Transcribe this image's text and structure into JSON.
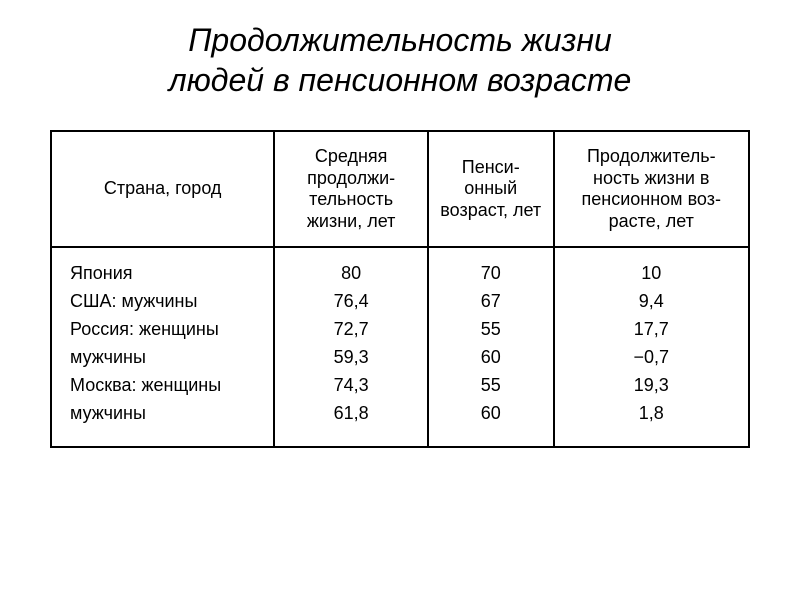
{
  "title_line1": "Продолжительность жизни",
  "title_line2": "людей в пенсионном возрасте",
  "table": {
    "type": "table",
    "columns": [
      {
        "label": "Страна, город",
        "width_pct": 32,
        "align": "left"
      },
      {
        "label": "Средняя продолжи-\nтельность жизни, лет",
        "width_pct": 22,
        "align": "center"
      },
      {
        "label": "Пенси-\nонный возраст, лет",
        "width_pct": 18,
        "align": "center"
      },
      {
        "label": "Продолжитель-\nность жизни в пенсионном воз-\nрасте, лет",
        "width_pct": 28,
        "align": "center"
      }
    ],
    "rows": [
      {
        "label": "Япония",
        "life": "80",
        "pension_age": "70",
        "years_in_pension": "10"
      },
      {
        "label": "США: мужчины",
        "life": "76,4",
        "pension_age": "67",
        "years_in_pension": "9,4"
      },
      {
        "label": "Россия: женщины",
        "life": "72,7",
        "pension_age": "55",
        "years_in_pension": "17,7"
      },
      {
        "label": "мужчины",
        "life": "59,3",
        "pension_age": "60",
        "years_in_pension": "−0,7"
      },
      {
        "label": "Москва: женщины",
        "life": "74,3",
        "pension_age": "55",
        "years_in_pension": "19,3"
      },
      {
        "label": "мужчины",
        "life": "61,8",
        "pension_age": "60",
        "years_in_pension": "1,8"
      }
    ],
    "border_color": "#000000",
    "background_color": "#ffffff",
    "body_fontsize": 18,
    "header_fontsize": 18
  },
  "title_fontsize": 32,
  "text_color": "#000000"
}
